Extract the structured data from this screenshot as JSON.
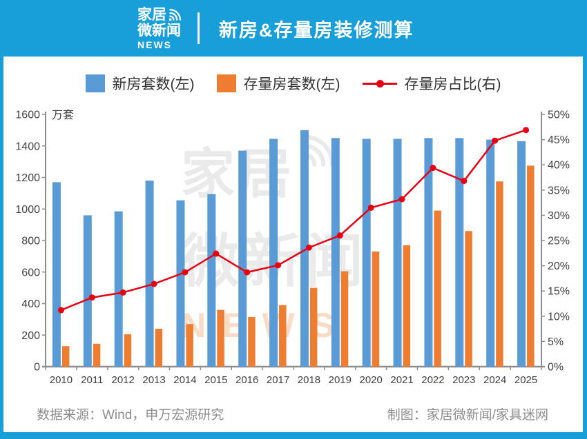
{
  "header": {
    "logo": {
      "line1": "家居",
      "line2": "微新闻",
      "line3": "NEWS"
    },
    "title": "新房&存量房装修测算"
  },
  "legend": {
    "items": [
      {
        "label": "新房套数(左)"
      },
      {
        "label": "存量房套数(左)"
      },
      {
        "label": "存量房占比(右)"
      }
    ]
  },
  "chart_data": {
    "type": "bar",
    "title": "新房&存量房装修测算",
    "categories": [
      "2010",
      "2011",
      "2012",
      "2013",
      "2014",
      "2015",
      "2016",
      "2017",
      "2018",
      "2019",
      "2020",
      "2021",
      "2022",
      "2023",
      "2024",
      "2025"
    ],
    "series": [
      {
        "name": "新房套数(左)",
        "type": "bar",
        "axis": "left",
        "color": "#5B9BD5",
        "values": [
          1170,
          960,
          985,
          1180,
          1055,
          1095,
          1370,
          1445,
          1500,
          1450,
          1445,
          1445,
          1450,
          1450,
          1440,
          1430
        ]
      },
      {
        "name": "存量房套数(左)",
        "type": "bar",
        "axis": "left",
        "color": "#ED7D31",
        "values": [
          130,
          145,
          205,
          240,
          270,
          360,
          315,
          390,
          500,
          605,
          730,
          770,
          990,
          860,
          1175,
          1275
        ]
      },
      {
        "name": "存量房占比(右)",
        "type": "line",
        "axis": "right",
        "color": "#E60012",
        "values": [
          11.2,
          13.7,
          14.7,
          16.4,
          18.7,
          22.4,
          18.7,
          20.1,
          23.6,
          26.0,
          31.5,
          33.2,
          39.4,
          36.8,
          44.8,
          46.9
        ]
      }
    ],
    "left_axis": {
      "title": "万套",
      "min": 0,
      "max": 1600,
      "step": 200
    },
    "right_axis": {
      "min": 0,
      "max": 50,
      "step": 5,
      "suffix": "%"
    },
    "grid": false,
    "legend_position": "top"
  },
  "watermark": {
    "line1": "家居",
    "line2": "微新闻",
    "line3": "NEWS"
  },
  "footer": {
    "source": "数据来源：Wind，申万宏源研究",
    "credit": "制图：家居微新闻/家具迷网"
  },
  "colors": {
    "frame": "#189FD9",
    "bar_new": "#5B9BD5",
    "bar_existing": "#ED7D31",
    "line_ratio": "#E60012",
    "axis": "#8C8C8C",
    "tick_text": "#404040",
    "footer_text": "#8C8C8C"
  }
}
